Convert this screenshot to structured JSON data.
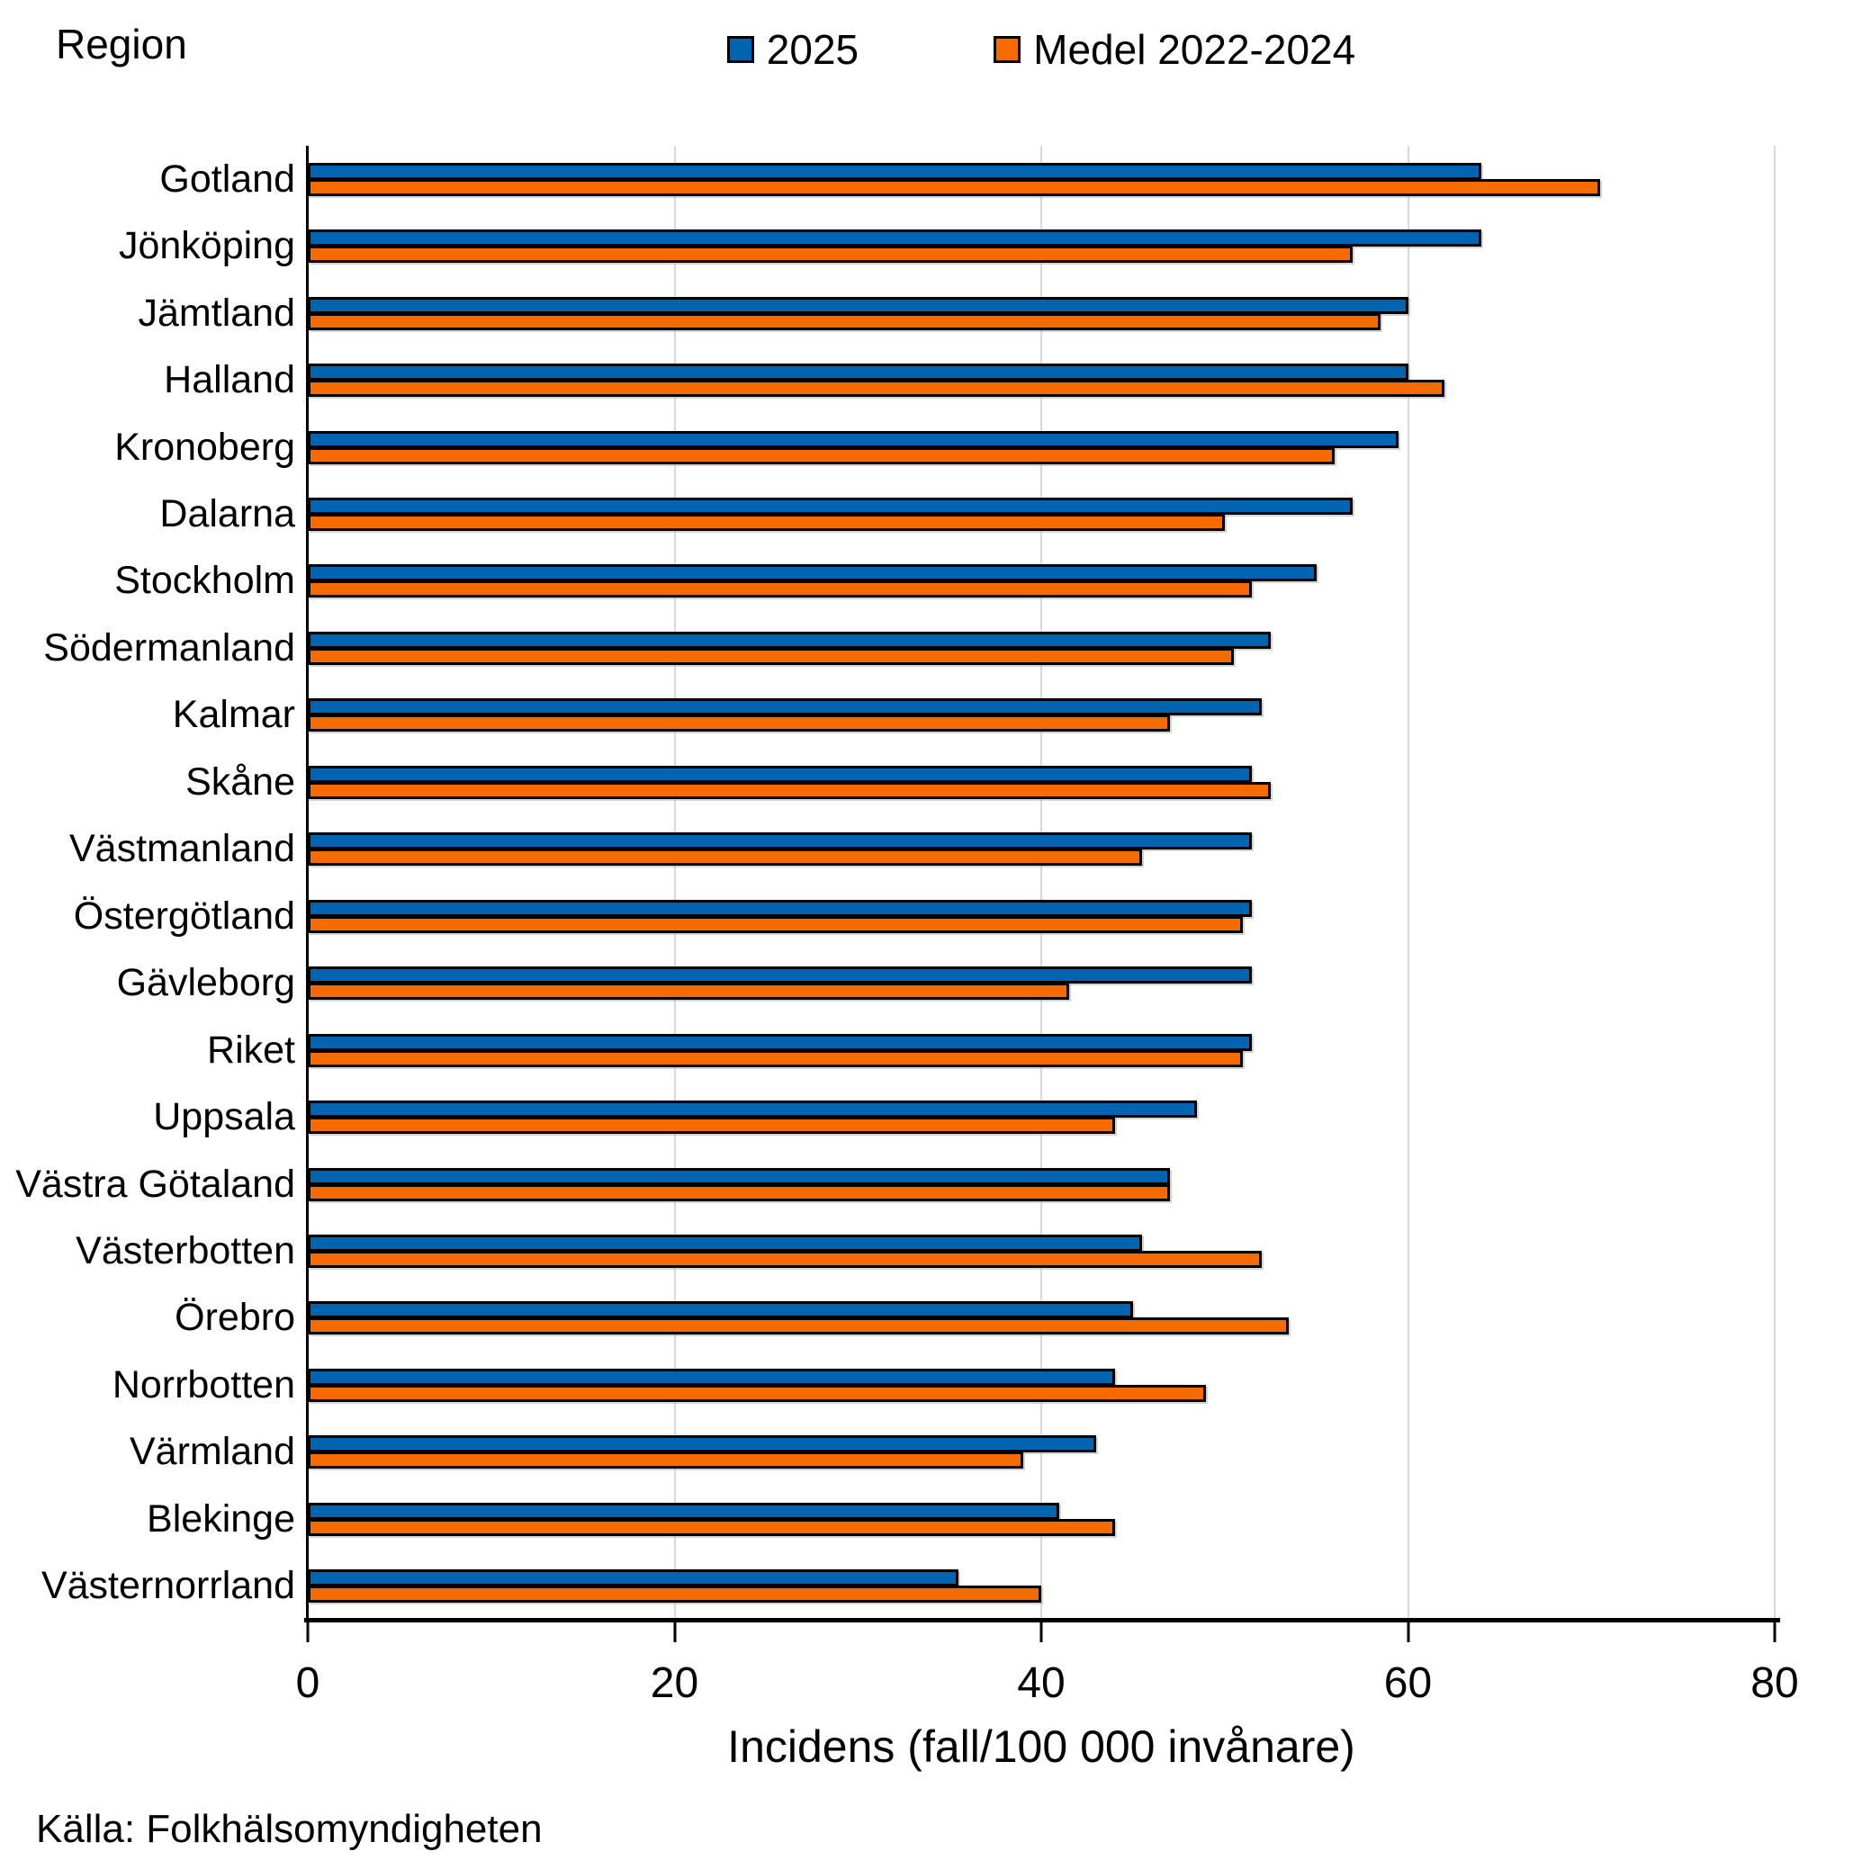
{
  "corner_title": "Region",
  "footer": "Källa: Folkhälsomyndigheten",
  "colors": {
    "series_2025": "#0064b0",
    "series_medel": "#f56b00",
    "gridline": "#d9d9d9",
    "axis": "#000000"
  },
  "chart_data": {
    "type": "bar",
    "orientation": "horizontal",
    "ylabel": "Region",
    "xlabel": "Incidens (fall/100 000 invånare)",
    "xlim": [
      0,
      80
    ],
    "x_ticks": [
      0,
      20,
      40,
      60,
      80
    ],
    "grid": "vertical",
    "legend_position": "top",
    "categories": [
      "Gotland",
      "Jönköping",
      "Jämtland",
      "Halland",
      "Kronoberg",
      "Dalarna",
      "Stockholm",
      "Södermanland",
      "Kalmar",
      "Skåne",
      "Västmanland",
      "Östergötland",
      "Gävleborg",
      "Riket",
      "Uppsala",
      "Västra Götaland",
      "Västerbotten",
      "Örebro",
      "Norrbotten",
      "Värmland",
      "Blekinge",
      "Västernorrland"
    ],
    "series": [
      {
        "name": "2025",
        "color": "#0064b0",
        "values": [
          64,
          64,
          60,
          60,
          59.5,
          57,
          55,
          52.5,
          52,
          51.5,
          51.5,
          51.5,
          51.5,
          51.5,
          48.5,
          47,
          45.5,
          45,
          44,
          43,
          41,
          35.5
        ]
      },
      {
        "name": "Medel 2022-2024",
        "color": "#f56b00",
        "values": [
          70.5,
          57,
          58.5,
          62,
          56,
          50,
          51.5,
          50.5,
          47,
          52.5,
          45.5,
          51,
          41.5,
          51,
          44,
          47,
          52,
          53.5,
          49,
          39,
          44,
          40
        ]
      }
    ],
    "source": "Källa: Folkhälsomyndigheten"
  }
}
